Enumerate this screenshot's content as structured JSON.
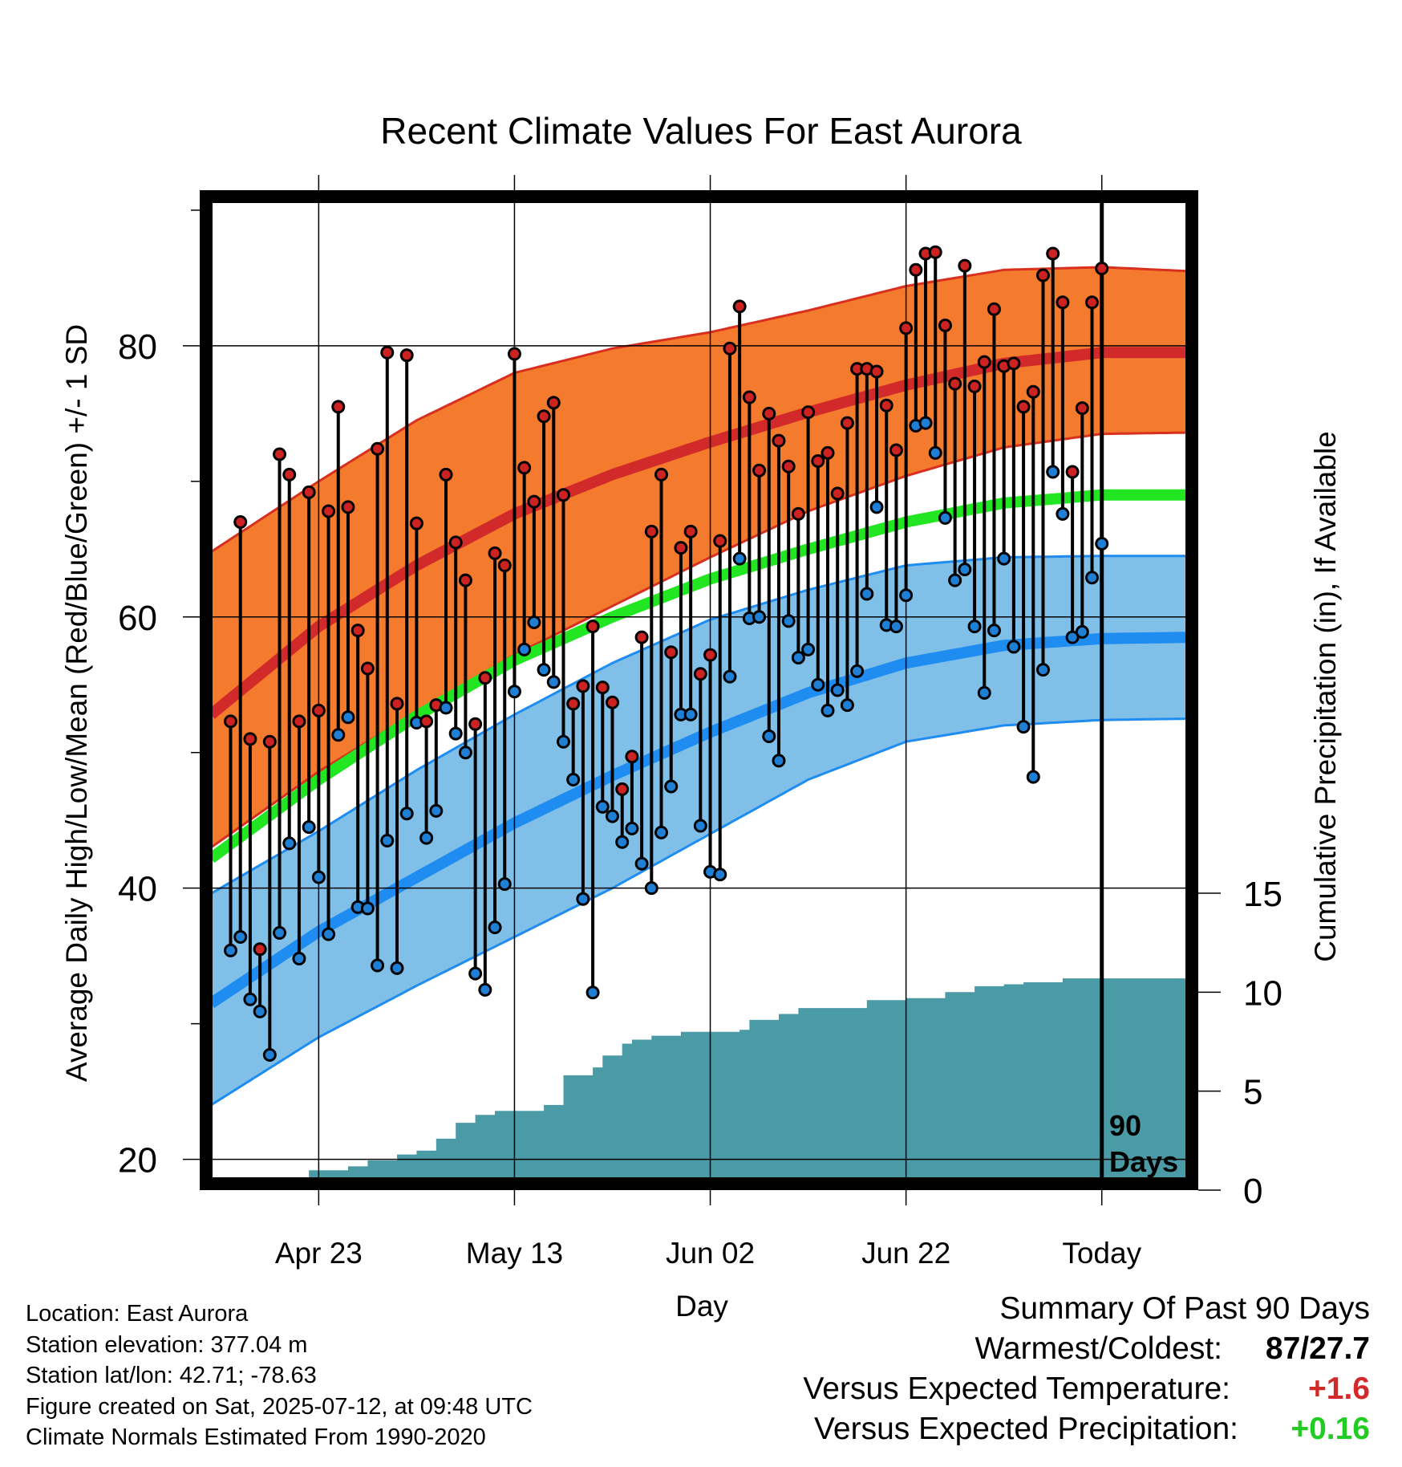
{
  "title": "Recent Climate Values For East Aurora",
  "ylabel_left": "Average Daily High/Low/Mean (Red/Blue/Green) +/- 1 SD",
  "ylabel_right": "Cumulative Precipitation (in), If Available",
  "xlabel": "Day",
  "today_marker": {
    "line1": "90",
    "line2": "Days"
  },
  "info": {
    "location": "Location: East Aurora",
    "elevation": "Station elevation: 377.04 m",
    "latlon": "Station lat/lon: 42.71; -78.63",
    "created": "Figure created on Sat, 2025-07-12, at 09:48 UTC",
    "normals": "Climate Normals Estimated From 1990-2020"
  },
  "summary": {
    "heading": "Summary Of Past 90 Days",
    "warmest_label": "Warmest/Coldest:",
    "warmest_value": "87/27.7",
    "temp_label": "Versus Expected Temperature:",
    "temp_value": "+1.6",
    "precip_label": "Versus Expected Precipitation:",
    "precip_value": "+0.16"
  },
  "chart_data": {
    "type": "line",
    "x_tick_labels": [
      "Apr 23",
      "May 13",
      "Jun 02",
      "Jun 22",
      "Today"
    ],
    "x_tick_days": [
      -80,
      -60,
      -40,
      -20,
      0
    ],
    "xlim": [
      -91.5,
      9.2
    ],
    "ylim_left": [
      18.2,
      91.0
    ],
    "y_ticks_left": [
      20,
      40,
      60,
      80
    ],
    "ylim_right": [
      0,
      15
    ],
    "y_ticks_right": [
      0,
      5,
      10,
      15
    ],
    "colors": {
      "high_band": "#f47a2e",
      "high_band_edge": "#d82f1f",
      "normal_high": "#d22a2a",
      "low_band": "#80c0e8",
      "low_band_edge": "#1e8cf0",
      "normal_low": "#1e8cf0",
      "normal_mean": "#22e622",
      "precip_fill": "#4a9ba6",
      "high_point": "#cc2222",
      "low_point": "#1f7fd4"
    },
    "normals": {
      "days": [
        -91,
        -80,
        -70,
        -60,
        -50,
        -40,
        -30,
        -20,
        -10,
        0,
        9
      ],
      "high": [
        52.8,
        59.3,
        63.8,
        67.6,
        70.5,
        72.9,
        75.1,
        77.1,
        78.7,
        79.5,
        79.5
      ],
      "high_sd_upper": [
        64.8,
        70.0,
        74.5,
        78.0,
        79.8,
        81.0,
        82.6,
        84.4,
        85.6,
        85.8,
        85.5
      ],
      "high_sd_lower": [
        43.0,
        48.6,
        53.0,
        57.2,
        60.8,
        64.4,
        67.8,
        70.4,
        72.5,
        73.5,
        73.6
      ],
      "mean": [
        42.2,
        48.0,
        52.7,
        56.8,
        60.0,
        62.8,
        65.0,
        67.0,
        68.4,
        69.0,
        69.0
      ],
      "low": [
        31.5,
        36.8,
        40.8,
        44.8,
        48.3,
        51.5,
        54.4,
        56.6,
        57.9,
        58.4,
        58.5
      ],
      "low_sd_upper": [
        39.6,
        44.2,
        48.7,
        52.8,
        56.6,
        59.8,
        62.0,
        63.8,
        64.4,
        64.5,
        64.5
      ],
      "low_sd_lower": [
        24.0,
        29.0,
        32.8,
        36.4,
        40.0,
        44.0,
        48.0,
        50.8,
        52.0,
        52.4,
        52.5
      ]
    },
    "precip": {
      "days": [
        -83,
        -81,
        -77,
        -75,
        -72,
        -70,
        -68,
        -66,
        -64,
        -62,
        -60,
        -58,
        -57,
        -55,
        -52,
        -51,
        -49,
        -48,
        -46,
        -43,
        -40,
        -37,
        -36,
        -33,
        -31,
        -27,
        -24,
        -20,
        -18,
        -16,
        -13,
        -10,
        -8,
        -4,
        9
      ],
      "values": [
        0.6,
        1.0,
        1.2,
        1.5,
        1.8,
        2.0,
        2.6,
        3.4,
        3.8,
        4.0,
        4.0,
        4.0,
        4.3,
        5.8,
        6.2,
        6.8,
        7.4,
        7.6,
        7.8,
        8.0,
        8.0,
        8.1,
        8.6,
        8.9,
        9.2,
        9.2,
        9.6,
        9.7,
        9.7,
        10.0,
        10.3,
        10.4,
        10.5,
        10.7,
        10.7
      ]
    },
    "series": [
      {
        "name": "High",
        "values": [
          52.3,
          67.0,
          51.0,
          35.5,
          50.8,
          72.0,
          70.5,
          52.3,
          69.2,
          53.1,
          67.8,
          75.5,
          68.1,
          59.0,
          56.2,
          72.4,
          79.5,
          53.6,
          79.3,
          66.9,
          52.3,
          53.5,
          70.5,
          65.5,
          62.7,
          52.1,
          55.5,
          64.7,
          63.8,
          79.4,
          71.0,
          68.5,
          74.8,
          75.8,
          69.0,
          53.6,
          54.9,
          59.3,
          54.8,
          53.7,
          47.3,
          49.7,
          58.5,
          66.3,
          70.5,
          57.4,
          65.1,
          66.3,
          55.8,
          57.2,
          65.6,
          79.8,
          82.9,
          76.2,
          70.8,
          75.0,
          73.0,
          71.1,
          67.6,
          75.1,
          71.5,
          72.1,
          69.1,
          74.3,
          78.3,
          78.3,
          78.1,
          75.6,
          72.3,
          81.3,
          85.6,
          86.8,
          86.9,
          81.5,
          77.2,
          85.9,
          77.0,
          78.8,
          82.7,
          78.5,
          78.7,
          75.5,
          76.6,
          85.2,
          86.8,
          83.2,
          70.7,
          75.4,
          83.2,
          85.7
        ]
      },
      {
        "name": "Low",
        "values": [
          35.4,
          36.4,
          31.8,
          30.9,
          27.7,
          36.7,
          43.3,
          34.8,
          44.5,
          40.8,
          36.6,
          51.3,
          52.6,
          38.6,
          38.5,
          34.3,
          43.5,
          34.1,
          45.5,
          52.2,
          43.7,
          45.7,
          53.3,
          51.4,
          50.0,
          33.7,
          32.5,
          37.1,
          40.3,
          54.5,
          57.6,
          59.6,
          56.1,
          55.2,
          50.8,
          48.0,
          39.2,
          32.3,
          46.0,
          45.3,
          43.4,
          44.4,
          41.8,
          40.0,
          44.1,
          47.5,
          52.8,
          52.8,
          44.6,
          41.2,
          41.0,
          55.6,
          64.3,
          59.9,
          60.0,
          51.2,
          49.4,
          59.7,
          57.0,
          57.6,
          55.0,
          53.1,
          54.6,
          53.5,
          56.0,
          61.7,
          68.1,
          59.4,
          59.3,
          61.6,
          74.1,
          74.3,
          72.1,
          67.3,
          62.7,
          63.5,
          59.3,
          54.4,
          59.0,
          64.3,
          57.8,
          51.9,
          48.2,
          56.1,
          70.7,
          67.6,
          58.5,
          58.9,
          62.9,
          65.4
        ]
      }
    ]
  }
}
